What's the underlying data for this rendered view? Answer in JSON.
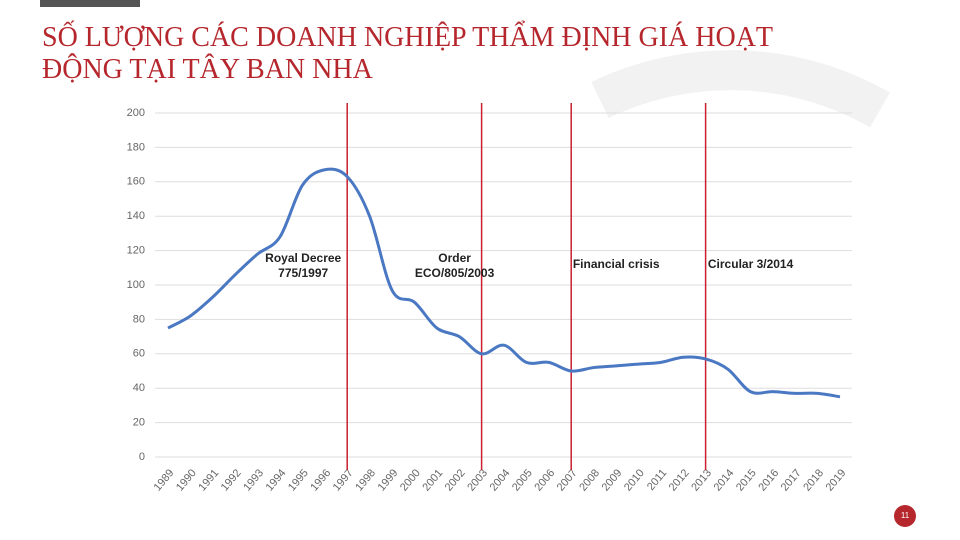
{
  "chart_data": {
    "type": "line",
    "title": "SỐ LƯỢNG CÁC DOANH NGHIỆP THẨM ĐỊNH GIÁ HOẠT ĐỘNG TẠI TÂY BAN NHA",
    "x": [
      1989,
      1990,
      1991,
      1992,
      1993,
      1994,
      1995,
      1996,
      1997,
      1998,
      1999,
      2000,
      2001,
      2002,
      2003,
      2004,
      2005,
      2006,
      2007,
      2008,
      2009,
      2010,
      2011,
      2012,
      2013,
      2014,
      2015,
      2016,
      2017,
      2018,
      2019
    ],
    "series": [
      {
        "color": "#4a78c2",
        "values": [
          75,
          82,
          93,
          106,
          118,
          128,
          158,
          167,
          163,
          140,
          97,
          90,
          75,
          70,
          60,
          65,
          55,
          55,
          50,
          52,
          53,
          54,
          55,
          58,
          57,
          51,
          38,
          38,
          37,
          37,
          35
        ]
      }
    ],
    "xlim": [
      1989,
      2019
    ],
    "xticks": [
      1989,
      1990,
      1991,
      1992,
      1993,
      1994,
      1995,
      1996,
      1997,
      1998,
      1999,
      2000,
      2001,
      2002,
      2003,
      2004,
      2005,
      2006,
      2007,
      2008,
      2009,
      2010,
      2011,
      2012,
      2013,
      2014,
      2015,
      2016,
      2017,
      2018,
      2019
    ],
    "ylim": [
      0,
      200
    ],
    "yticks": [
      0,
      20,
      40,
      60,
      80,
      100,
      120,
      140,
      160,
      180,
      200
    ],
    "grid": true,
    "events": [
      {
        "x": 1997,
        "label": [
          "Royal Decree",
          "775/1997"
        ]
      },
      {
        "x": 2003,
        "label": [
          "Order",
          "ECO/805/2003"
        ]
      },
      {
        "x": 2007,
        "label": [
          "Financial crisis"
        ]
      },
      {
        "x": 2013,
        "label": [
          "Circular 3/2014"
        ]
      }
    ],
    "event_color": "#c8202f"
  },
  "page_number": "11"
}
